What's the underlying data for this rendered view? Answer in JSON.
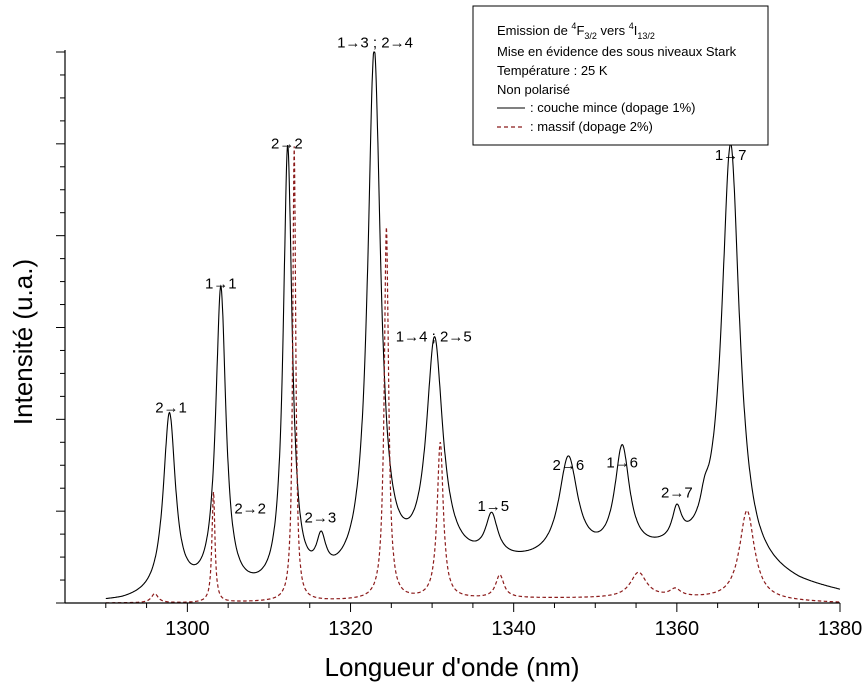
{
  "chart_data": {
    "type": "line",
    "xlabel": "Longueur d'onde (nm)",
    "ylabel": "Intensité (u.a.)",
    "xlim": [
      1285,
      1380
    ],
    "ylim": [
      0,
      1.2
    ],
    "x_ticks": [
      1300,
      1320,
      1340,
      1360,
      1380
    ],
    "x_tick_labels": [
      "1300",
      "1320",
      "1340",
      "1360",
      "1380"
    ],
    "legend": {
      "lines": [
        {
          "pre": "Emission de ",
          "sup1": "4",
          "b1": "F",
          "sub1": "3/2",
          "mid": " vers ",
          "sup2": "4",
          "b2": "I",
          "sub2": "13/2"
        },
        {
          "text": "Mise en évidence des sous niveaux Stark"
        },
        {
          "text": "Température : 25 K"
        },
        {
          "text": "Non polarisé"
        }
      ],
      "entries": [
        {
          "label": ": couche mince (dopage 1%)",
          "color": "#000000",
          "dash": "none"
        },
        {
          "label": ": massif (dopage 2%)",
          "color": "#8B1A1A",
          "dash": "4,3"
        }
      ]
    },
    "series": [
      {
        "name": "couche mince (dopage 1%)",
        "color": "#000000",
        "peaks": [
          {
            "x": 1297.8,
            "h": 0.392,
            "w": 0.9
          },
          {
            "x": 1304.1,
            "h": 0.66,
            "w": 0.75
          },
          {
            "x": 1312.3,
            "h": 0.96,
            "w": 0.65
          },
          {
            "x": 1316.4,
            "h": 0.075,
            "w": 0.7
          },
          {
            "x": 1322.9,
            "h": 1.14,
            "w": 0.95
          },
          {
            "x": 1330.3,
            "h": 0.48,
            "w": 1.2
          },
          {
            "x": 1337.3,
            "h": 0.09,
            "w": 0.9
          },
          {
            "x": 1346.7,
            "h": 0.22,
            "w": 1.4
          },
          {
            "x": 1353.3,
            "h": 0.23,
            "w": 1.1
          },
          {
            "x": 1360.0,
            "h": 0.07,
            "w": 0.7
          },
          {
            "x": 1363.4,
            "h": 0.04,
            "w": 0.6
          },
          {
            "x": 1366.6,
            "h": 0.9,
            "w": 1.3
          }
        ],
        "baseline": [
          [
            1285,
            0.0
          ],
          [
            1292,
            0.0
          ],
          [
            1300,
            0.012
          ],
          [
            1310,
            0.01
          ],
          [
            1318,
            0.03
          ],
          [
            1326,
            0.06
          ],
          [
            1332,
            0.08
          ],
          [
            1340,
            0.08
          ],
          [
            1348,
            0.085
          ],
          [
            1358,
            0.1
          ],
          [
            1366,
            0.1
          ],
          [
            1370,
            0.06
          ],
          [
            1375,
            0.035
          ],
          [
            1380,
            0.02
          ]
        ]
      },
      {
        "name": "massif (dopage 2%)",
        "color": "#8B1A1A",
        "peaks": [
          {
            "x": 1296.0,
            "h": 0.02,
            "w": 0.5
          },
          {
            "x": 1303.2,
            "h": 0.24,
            "w": 0.22
          },
          {
            "x": 1313.1,
            "h": 0.99,
            "w": 0.22
          },
          {
            "x": 1324.4,
            "h": 0.81,
            "w": 0.32
          },
          {
            "x": 1331.0,
            "h": 0.34,
            "w": 0.45
          },
          {
            "x": 1338.3,
            "h": 0.05,
            "w": 0.6
          },
          {
            "x": 1355.3,
            "h": 0.055,
            "w": 1.2
          },
          {
            "x": 1359.8,
            "h": 0.016,
            "w": 0.8
          },
          {
            "x": 1368.6,
            "h": 0.195,
            "w": 1.1
          }
        ],
        "baseline": [
          [
            1285,
            0.0
          ],
          [
            1300,
            0.0
          ],
          [
            1320,
            0.005
          ],
          [
            1340,
            0.01
          ],
          [
            1360,
            0.01
          ],
          [
            1380,
            0.0
          ]
        ]
      }
    ],
    "annotations": [
      {
        "text": "2→1",
        "x": 1298.0,
        "y": 0.415
      },
      {
        "text": "1→1",
        "x": 1304.1,
        "y": 0.685
      },
      {
        "text": "2→2",
        "x": 1312.2,
        "y": 0.99
      },
      {
        "text": "2→2",
        "x": 1307.7,
        "y": 0.195
      },
      {
        "text": "2→3",
        "x": 1316.3,
        "y": 0.175
      },
      {
        "text": "1→3 ; 2→4",
        "x": 1323.0,
        "y": 1.21
      },
      {
        "text": "1→4 ; 2→5",
        "x": 1330.2,
        "y": 0.57
      },
      {
        "text": "1→5",
        "x": 1337.5,
        "y": 0.2
      },
      {
        "text": "2→6",
        "x": 1346.7,
        "y": 0.29
      },
      {
        "text": "1→6",
        "x": 1353.3,
        "y": 0.295
      },
      {
        "text": "2→7",
        "x": 1360.0,
        "y": 0.23
      },
      {
        "text": "1→7",
        "x": 1366.6,
        "y": 0.965
      }
    ]
  }
}
